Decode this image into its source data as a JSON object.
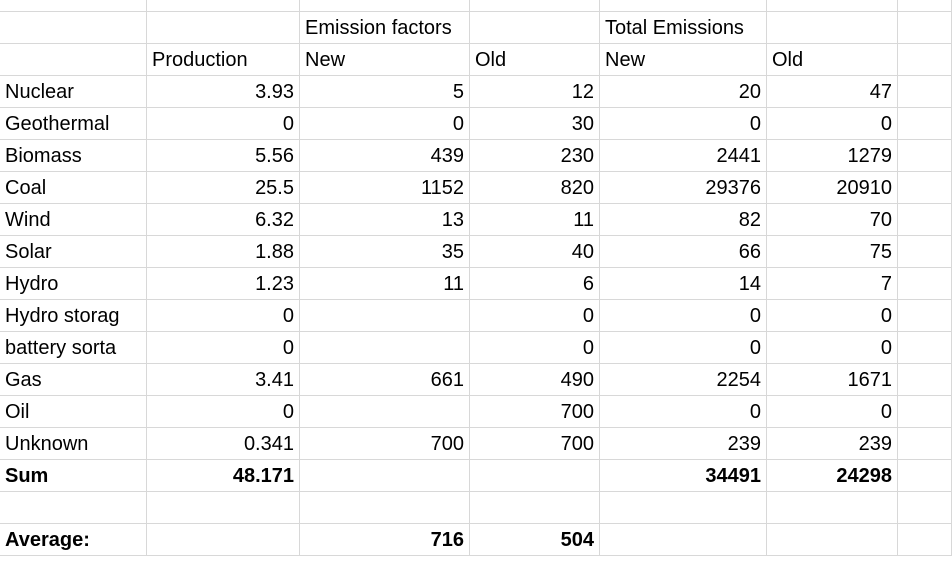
{
  "header": {
    "row1": {
      "c2": "Emission factors",
      "c4": "Total Emissions"
    },
    "row2": {
      "c1": "Production",
      "c2": "New",
      "c3": "Old",
      "c4": "New",
      "c5": "Old"
    }
  },
  "rows": [
    {
      "label": "Nuclear",
      "production": "3.93",
      "ef_new": "5",
      "ef_old": "12",
      "te_new": "20",
      "te_old": "47"
    },
    {
      "label": "Geothermal",
      "production": "0",
      "ef_new": "0",
      "ef_old": "30",
      "te_new": "0",
      "te_old": "0"
    },
    {
      "label": "Biomass",
      "production": "5.56",
      "ef_new": "439",
      "ef_old": "230",
      "te_new": "2441",
      "te_old": "1279"
    },
    {
      "label": "Coal",
      "production": "25.5",
      "ef_new": "1152",
      "ef_old": "820",
      "te_new": "29376",
      "te_old": "20910"
    },
    {
      "label": "Wind",
      "production": "6.32",
      "ef_new": "13",
      "ef_old": "11",
      "te_new": "82",
      "te_old": "70"
    },
    {
      "label": "Solar",
      "production": "1.88",
      "ef_new": "35",
      "ef_old": "40",
      "te_new": "66",
      "te_old": "75"
    },
    {
      "label": "Hydro",
      "production": "1.23",
      "ef_new": "11",
      "ef_old": "6",
      "te_new": "14",
      "te_old": "7"
    },
    {
      "label": "Hydro storag",
      "production": "0",
      "ef_new": "",
      "ef_old": "0",
      "te_new": "0",
      "te_old": "0"
    },
    {
      "label": "battery sorta",
      "production": "0",
      "ef_new": "",
      "ef_old": "0",
      "te_new": "0",
      "te_old": "0"
    },
    {
      "label": "Gas",
      "production": "3.41",
      "ef_new": "661",
      "ef_old": "490",
      "te_new": "2254",
      "te_old": "1671"
    },
    {
      "label": "Oil",
      "production": "0",
      "ef_new": "",
      "ef_old": "700",
      "te_new": "0",
      "te_old": "0"
    },
    {
      "label": "Unknown",
      "production": "0.341",
      "ef_new": "700",
      "ef_old": "700",
      "te_new": "239",
      "te_old": "239"
    }
  ],
  "sum": {
    "label": "Sum",
    "production": "48.171",
    "ef_new": "",
    "ef_old": "",
    "te_new": "34491",
    "te_old": "24298"
  },
  "average": {
    "label": "Average:",
    "ef_new": "716",
    "ef_old": "504"
  }
}
